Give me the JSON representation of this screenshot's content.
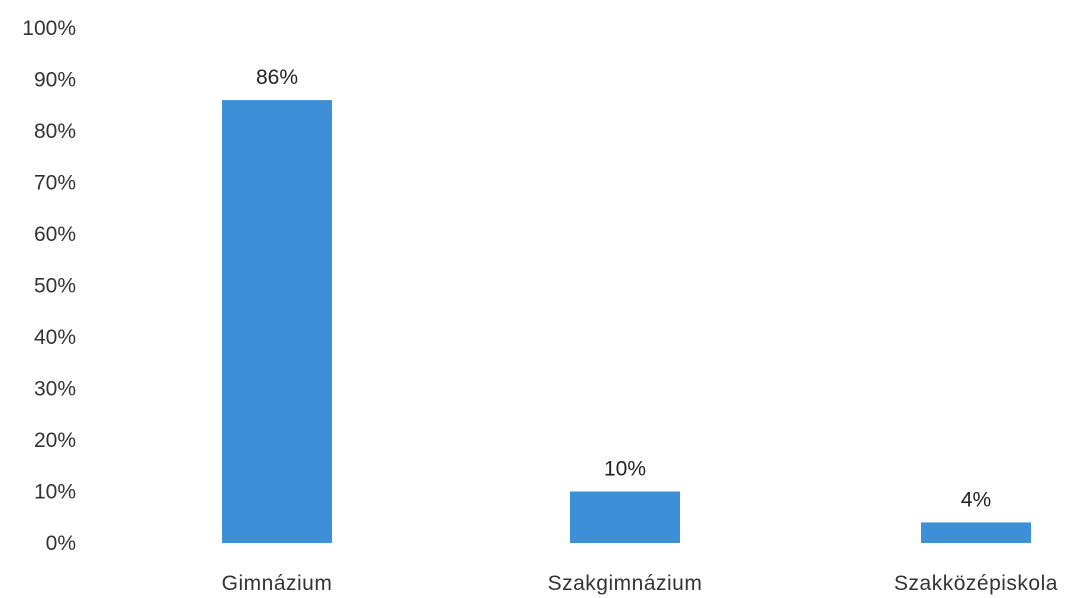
{
  "chart_data": {
    "type": "bar",
    "categories": [
      "Gimnázium",
      "Szakgimnázium",
      "Szakközépiskola"
    ],
    "values": [
      86,
      10,
      4
    ],
    "data_labels": [
      "86%",
      "10%",
      "4%"
    ],
    "title": "",
    "xlabel": "",
    "ylabel": "",
    "ylim": [
      0,
      100
    ],
    "y_ticks": [
      0,
      10,
      20,
      30,
      40,
      50,
      60,
      70,
      80,
      90,
      100
    ],
    "y_tick_labels": [
      "0%",
      "10%",
      "20%",
      "30%",
      "40%",
      "50%",
      "60%",
      "70%",
      "80%",
      "90%",
      "100%"
    ],
    "grid": false,
    "legend": "none",
    "bar_color": "#3d8fd6"
  }
}
